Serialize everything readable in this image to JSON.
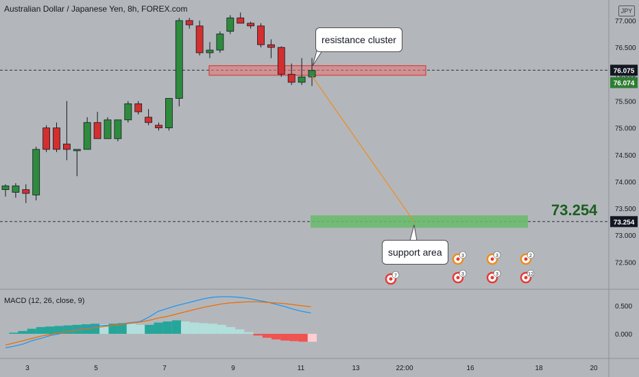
{
  "title": "Australian Dollar / Japanese Yen, 8h, FOREX.com",
  "currency_badge": "JPY",
  "annotations": {
    "resistance": "resistance cluster",
    "support": "support area",
    "big_price": "73.254"
  },
  "colors": {
    "background": "#b3b7bb",
    "up": "#2e8b3d",
    "down": "#d32f2f",
    "resistance_fill": "#e57373",
    "support_fill": "#66bb6a",
    "projection_line": "#ef8c1a",
    "macd_line": "#2196f3",
    "signal_line": "#ef6c00"
  },
  "chart_data": [
    {
      "type": "candlestick",
      "title": "Australian Dollar / Japanese Yen, 8h, FOREX.com",
      "y_axis": {
        "ticks": [
          "77.000",
          "76.500",
          "76.000",
          "75.500",
          "75.000",
          "74.500",
          "74.000",
          "73.500",
          "73.000",
          "72.500"
        ],
        "range": [
          72.0,
          77.15
        ]
      },
      "x_axis": {
        "ticks": [
          "3",
          "5",
          "7",
          "9",
          "11",
          "13",
          "22:00",
          "16",
          "18",
          "20",
          "22:00"
        ]
      },
      "price_labels": [
        {
          "text": "76.075",
          "value": 76.075,
          "style": "dark"
        },
        {
          "text": "76.074",
          "value": 76.074,
          "style": "green"
        },
        {
          "text": "73.254",
          "value": 73.254,
          "style": "dark"
        }
      ],
      "dashed_levels": [
        76.075,
        73.254
      ],
      "candles": [
        {
          "o": 73.85,
          "h": 73.95,
          "l": 73.72,
          "c": 73.92
        },
        {
          "o": 73.8,
          "h": 73.97,
          "l": 73.7,
          "c": 73.92
        },
        {
          "o": 73.85,
          "h": 73.95,
          "l": 73.6,
          "c": 73.78
        },
        {
          "o": 73.75,
          "h": 74.65,
          "l": 73.65,
          "c": 74.6
        },
        {
          "o": 75.0,
          "h": 75.05,
          "l": 74.55,
          "c": 74.6
        },
        {
          "o": 75.0,
          "h": 75.1,
          "l": 74.55,
          "c": 74.6
        },
        {
          "o": 74.7,
          "h": 75.5,
          "l": 74.4,
          "c": 74.6
        },
        {
          "o": 74.6,
          "h": 74.6,
          "l": 74.1,
          "c": 74.6
        },
        {
          "o": 74.6,
          "h": 75.2,
          "l": 74.6,
          "c": 75.1
        },
        {
          "o": 75.1,
          "h": 75.3,
          "l": 74.8,
          "c": 74.8
        },
        {
          "o": 74.8,
          "h": 75.2,
          "l": 74.8,
          "c": 75.15
        },
        {
          "o": 74.8,
          "h": 75.1,
          "l": 74.75,
          "c": 75.15
        },
        {
          "o": 75.15,
          "h": 75.5,
          "l": 75.1,
          "c": 75.45
        },
        {
          "o": 75.45,
          "h": 75.5,
          "l": 75.25,
          "c": 75.3
        },
        {
          "o": 75.2,
          "h": 75.35,
          "l": 75.05,
          "c": 75.1
        },
        {
          "o": 75.05,
          "h": 75.1,
          "l": 74.95,
          "c": 75.0
        },
        {
          "o": 75.0,
          "h": 75.55,
          "l": 74.95,
          "c": 75.55
        },
        {
          "o": 75.55,
          "h": 77.05,
          "l": 75.4,
          "c": 77.0
        },
        {
          "o": 77.0,
          "h": 77.05,
          "l": 76.85,
          "c": 76.92
        },
        {
          "o": 76.9,
          "h": 77.0,
          "l": 76.35,
          "c": 76.4
        },
        {
          "o": 76.4,
          "h": 76.6,
          "l": 76.3,
          "c": 76.45
        },
        {
          "o": 76.45,
          "h": 76.8,
          "l": 76.4,
          "c": 76.75
        },
        {
          "o": 76.8,
          "h": 77.1,
          "l": 76.75,
          "c": 77.05
        },
        {
          "o": 77.05,
          "h": 77.15,
          "l": 76.95,
          "c": 76.95
        },
        {
          "o": 76.95,
          "h": 76.98,
          "l": 76.85,
          "c": 76.9
        },
        {
          "o": 76.9,
          "h": 76.95,
          "l": 76.5,
          "c": 76.55
        },
        {
          "o": 76.55,
          "h": 76.65,
          "l": 76.3,
          "c": 76.5
        },
        {
          "o": 76.5,
          "h": 76.52,
          "l": 75.95,
          "c": 76.0
        },
        {
          "o": 76.0,
          "h": 76.2,
          "l": 75.8,
          "c": 75.85
        },
        {
          "o": 75.85,
          "h": 76.3,
          "l": 75.8,
          "c": 75.95
        },
        {
          "o": 75.95,
          "h": 76.3,
          "l": 75.78,
          "c": 76.07
        }
      ],
      "resistance_zone": {
        "low": 75.98,
        "high": 76.16
      },
      "support_zone": {
        "low": 73.14,
        "high": 73.37
      },
      "projection": {
        "from": 76.07,
        "to": 73.254
      },
      "event_markers": [
        {
          "count": "7"
        },
        {
          "count": "3"
        },
        {
          "count": "3"
        },
        {
          "count": "3"
        },
        {
          "count": "3"
        },
        {
          "count": "2"
        },
        {
          "count": "12"
        }
      ]
    },
    {
      "type": "macd",
      "title": "MACD (12, 26, close, 9)",
      "y_axis": {
        "ticks": [
          "0.500",
          "0.000"
        ],
        "range": [
          -0.3,
          0.72
        ]
      },
      "histogram": [
        0.0,
        0.02,
        0.05,
        0.09,
        0.12,
        0.13,
        0.14,
        0.15,
        0.16,
        0.17,
        0.18,
        0.17,
        0.18,
        0.19,
        0.18,
        0.16,
        0.16,
        0.2,
        0.22,
        0.24,
        0.22,
        0.2,
        0.19,
        0.18,
        0.16,
        0.12,
        0.08,
        0.03,
        -0.03,
        -0.07,
        -0.1,
        -0.12,
        -0.13,
        -0.14,
        -0.14
      ],
      "macd_line": [
        -0.25,
        -0.22,
        -0.18,
        -0.12,
        -0.08,
        -0.03,
        0.0,
        0.05,
        0.08,
        0.11,
        0.14,
        0.15,
        0.15,
        0.18,
        0.2,
        0.22,
        0.3,
        0.4,
        0.45,
        0.5,
        0.54,
        0.58,
        0.62,
        0.65,
        0.66,
        0.66,
        0.65,
        0.63,
        0.6,
        0.57,
        0.53,
        0.49,
        0.44,
        0.4,
        0.37
      ],
      "signal_line": [
        -0.2,
        -0.16,
        -0.12,
        -0.08,
        -0.04,
        -0.01,
        0.02,
        0.04,
        0.07,
        0.09,
        0.11,
        0.13,
        0.15,
        0.17,
        0.19,
        0.21,
        0.24,
        0.28,
        0.31,
        0.35,
        0.39,
        0.43,
        0.47,
        0.5,
        0.53,
        0.55,
        0.56,
        0.57,
        0.57,
        0.56,
        0.55,
        0.54,
        0.52,
        0.5,
        0.48
      ]
    }
  ]
}
